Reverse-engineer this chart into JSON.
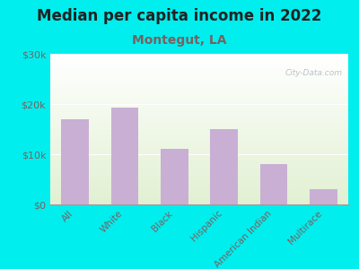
{
  "title": "Median per capita income in 2022",
  "subtitle": "Montegut, LA",
  "categories": [
    "All",
    "White",
    "Black",
    "Hispanic",
    "American Indian",
    "Multirace"
  ],
  "values": [
    17000,
    19200,
    11000,
    15000,
    8000,
    3000
  ],
  "bar_color": "#c9afd4",
  "title_fontsize": 12,
  "title_color": "#222222",
  "subtitle_fontsize": 10,
  "subtitle_color": "#7a6060",
  "background_color": "#00eeee",
  "ylim": [
    0,
    30000
  ],
  "yticks": [
    0,
    10000,
    20000,
    30000
  ],
  "ytick_labels": [
    "$0",
    "$10k",
    "$20k",
    "$30k"
  ],
  "watermark": "City-Data.com",
  "tick_color": "#7a6060",
  "xtick_fontsize": 7.5,
  "ytick_fontsize": 8
}
